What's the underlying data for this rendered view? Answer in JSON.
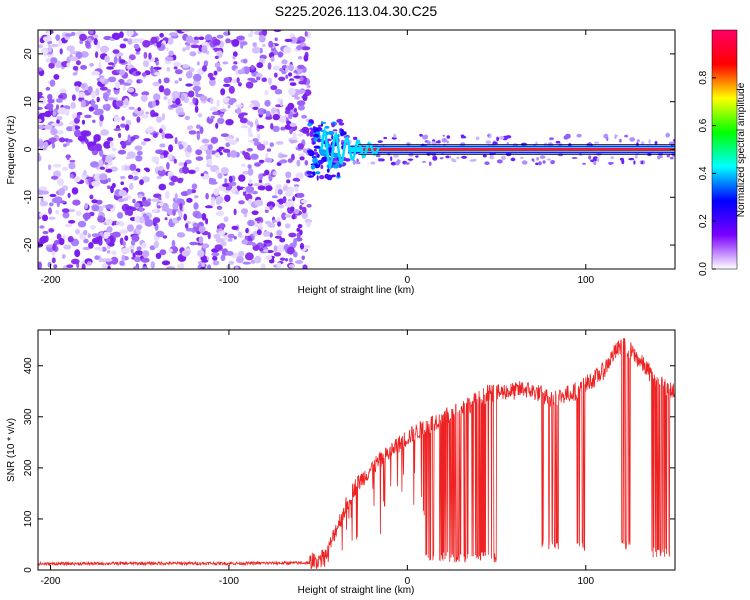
{
  "title": "S225.2026.113.04.30.C25",
  "chart_data": [
    {
      "type": "heatmap",
      "xlabel": "Height of straight line (km)",
      "ylabel": "Frequency (Hz)",
      "xlim": [
        -207,
        150
      ],
      "ylim": [
        -25,
        25
      ],
      "xticks": [
        -200,
        -100,
        0,
        100
      ],
      "xtick_labels": [
        "-200",
        "-100",
        "0",
        "100"
      ],
      "yticks": [
        -20,
        -10,
        0,
        10,
        20
      ],
      "ytick_labels": [
        "-20",
        "-10",
        "0",
        "10",
        "20"
      ],
      "colorbar": {
        "label": "Normalized spectral amplitude",
        "range": [
          0.0,
          1.0
        ],
        "ticks": [
          0.0,
          0.2,
          0.4,
          0.6,
          0.8
        ],
        "tick_labels": [
          "0.0",
          "0.2",
          "0.4",
          "0.6",
          "0.8"
        ],
        "colors": [
          "#ffffff",
          "#7a00ff",
          "#0000ff",
          "#00ffff",
          "#00ff00",
          "#ffff00",
          "#ff0000",
          "#ff0066"
        ]
      },
      "noise_region_x": [
        -207,
        -55
      ],
      "tone_start_x": -50,
      "tone_frequency": 0
    },
    {
      "type": "line",
      "xlabel": "Height of straight line (km)",
      "ylabel": "SNR (10 * v/v)",
      "xlim": [
        -207,
        150
      ],
      "ylim": [
        0,
        470
      ],
      "xticks": [
        -200,
        -100,
        0,
        100
      ],
      "xtick_labels": [
        "-200",
        "-100",
        "0",
        "100"
      ],
      "yticks": [
        0,
        100,
        200,
        300,
        400
      ],
      "ytick_labels": [
        "0",
        "100",
        "200",
        "300",
        "400"
      ],
      "color": "#ee2222",
      "series": [
        {
          "name": "SNR",
          "x": [
            -207,
            -150,
            -100,
            -55,
            -45,
            -40,
            -35,
            -30,
            -25,
            -20,
            -15,
            -10,
            -5,
            0,
            5,
            10,
            15,
            20,
            25,
            30,
            35,
            40,
            45,
            50,
            55,
            60,
            65,
            70,
            75,
            80,
            85,
            90,
            95,
            100,
            105,
            110,
            115,
            120,
            125,
            130,
            135,
            140,
            145,
            150
          ],
          "y": [
            12,
            13,
            13,
            14,
            30,
            80,
            120,
            160,
            180,
            200,
            215,
            230,
            245,
            260,
            270,
            280,
            290,
            300,
            305,
            315,
            325,
            335,
            345,
            345,
            350,
            350,
            355,
            350,
            345,
            335,
            340,
            345,
            350,
            365,
            375,
            390,
            420,
            440,
            430,
            410,
            390,
            370,
            355,
            350
          ]
        }
      ],
      "dropouts": [
        {
          "x_range": [
            10,
            50
          ],
          "min": 15
        },
        {
          "x_range": [
            75,
            85
          ],
          "min": 40
        },
        {
          "x_range": [
            95,
            100
          ],
          "min": 35
        },
        {
          "x_range": [
            120,
            125
          ],
          "min": 40
        },
        {
          "x_range": [
            137,
            147
          ],
          "min": 25
        }
      ]
    }
  ]
}
